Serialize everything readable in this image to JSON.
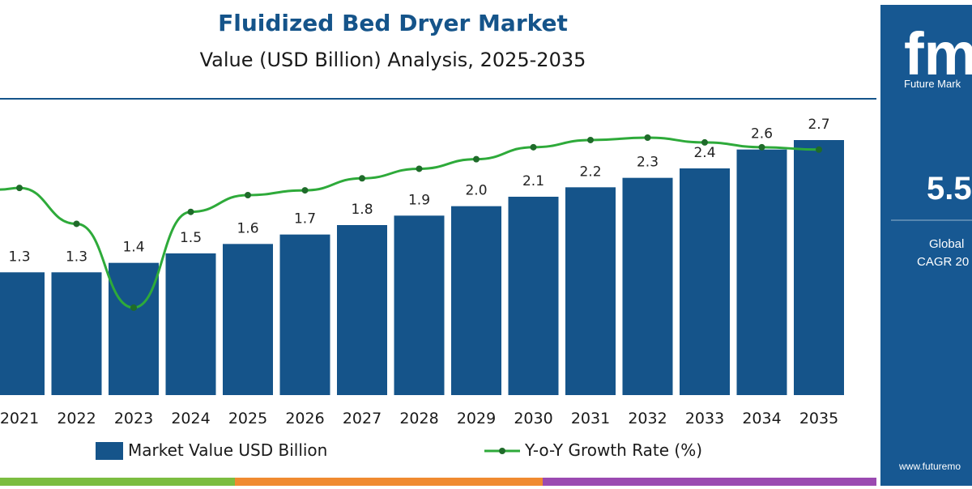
{
  "title": "Fluidized Bed Dryer Market",
  "subtitle": "Value (USD Billion) Analysis, 2025-2035",
  "brand": {
    "logo_text": "fmi",
    "tagline": "Future Mark",
    "big_value": "5.5",
    "label_line1": "Global",
    "label_line2": "CAGR 20",
    "website": "www.futuremo"
  },
  "colors": {
    "bar": "#15548a",
    "line": "#2eaa3a",
    "title": "#15548a",
    "panel": "#175892",
    "bottom_stripe": [
      "#7bbd40",
      "#f08a30",
      "#9b4ab1",
      "#2a6fb0"
    ]
  },
  "legend": {
    "bar_label": "Market Value USD Billion",
    "line_label": "Y-o-Y Growth Rate (%)"
  },
  "chart_data": {
    "type": "bar",
    "title": "Fluidized Bed Dryer Market",
    "subtitle": "Value (USD Billion) Analysis, 2025-2035",
    "categories": [
      "2021",
      "2022",
      "2023",
      "2024",
      "2025",
      "2026",
      "2027",
      "2028",
      "2029",
      "2030",
      "2031",
      "2032",
      "2033",
      "2034",
      "2035"
    ],
    "series": [
      {
        "name": "Market Value USD Billion",
        "type": "bar",
        "values": [
          1.3,
          1.3,
          1.4,
          1.5,
          1.6,
          1.7,
          1.8,
          1.9,
          2.0,
          2.1,
          2.2,
          2.3,
          2.4,
          2.6,
          2.7
        ],
        "labels": [
          "1.3",
          "1.3",
          "1.4",
          "1.5",
          "1.6",
          "1.7",
          "1.8",
          "1.9",
          "2.0",
          "2.1",
          "2.2",
          "2.3",
          "2.4",
          "2.6",
          "2.7"
        ]
      },
      {
        "name": "Y-o-Y Growth Rate (%)",
        "type": "line",
        "values": [
          5.0,
          3.5,
          0.0,
          4.0,
          4.7,
          4.9,
          5.4,
          5.8,
          6.2,
          6.7,
          7.0,
          7.1,
          6.9,
          6.7,
          6.6
        ]
      }
    ],
    "ylim": [
      0,
      3.0
    ],
    "grid": false,
    "legend_position": "bottom"
  }
}
